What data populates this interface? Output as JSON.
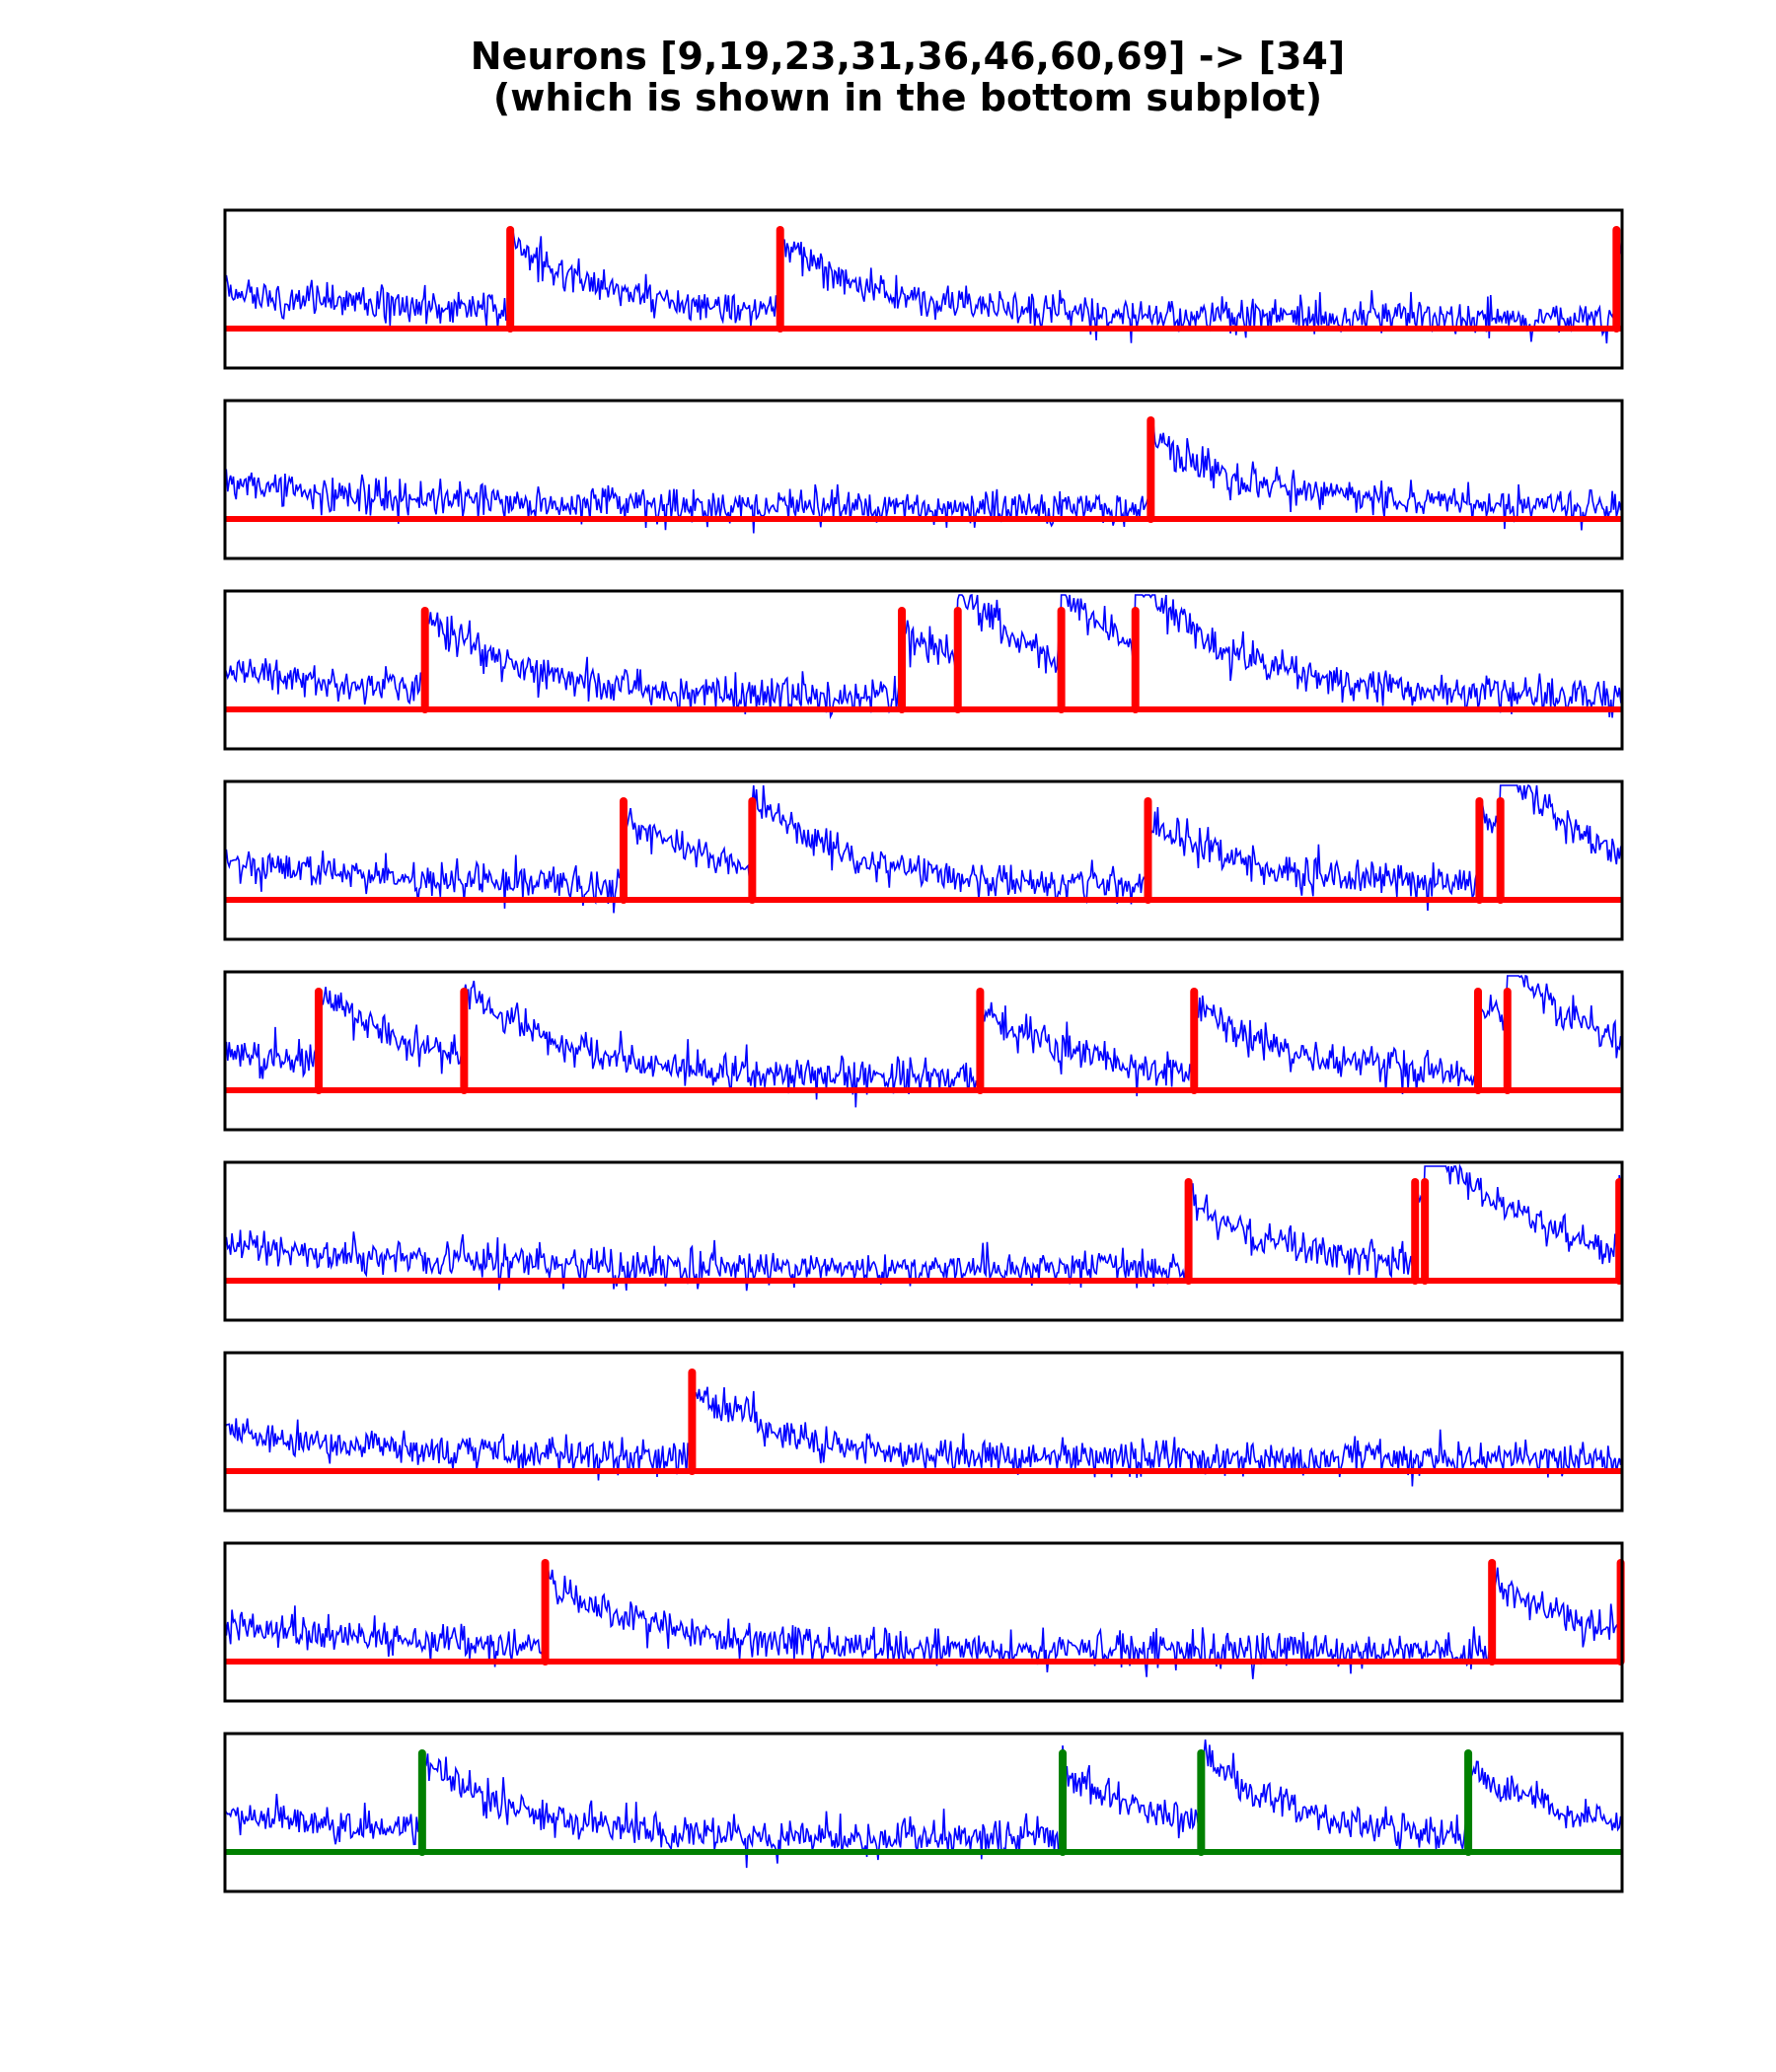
{
  "chart_data": {
    "type": "line",
    "title": "Neurons [9,19,23,31,36,46,60,69] -> [34]",
    "subtitle": "(which is shown in the bottom subplot)",
    "xlabel": "",
    "ylabel": "",
    "grid": false,
    "n_samples": 1000,
    "colors": {
      "trace": "#0000ff",
      "input_spikes": "#ff0000",
      "output_spikes": "#008000",
      "frame": "#000000"
    },
    "subplots": [
      {
        "neuron": 9,
        "role": "input",
        "spike_times": [
          204,
          397,
          995
        ]
      },
      {
        "neuron": 19,
        "role": "input",
        "spike_times": [
          662
        ]
      },
      {
        "neuron": 23,
        "role": "input",
        "spike_times": [
          143,
          484,
          524,
          598,
          651
        ]
      },
      {
        "neuron": 31,
        "role": "input",
        "spike_times": [
          285,
          377,
          660,
          897,
          912
        ]
      },
      {
        "neuron": 36,
        "role": "input",
        "spike_times": [
          67,
          171,
          540,
          693,
          896,
          917
        ]
      },
      {
        "neuron": 46,
        "role": "input",
        "spike_times": [
          689,
          851,
          858,
          997
        ]
      },
      {
        "neuron": 60,
        "role": "input",
        "spike_times": [
          334
        ]
      },
      {
        "neuron": 69,
        "role": "input",
        "spike_times": [
          229,
          906,
          998
        ]
      },
      {
        "neuron": 34,
        "role": "output",
        "spike_times": [
          141,
          599,
          698,
          889
        ]
      }
    ]
  }
}
